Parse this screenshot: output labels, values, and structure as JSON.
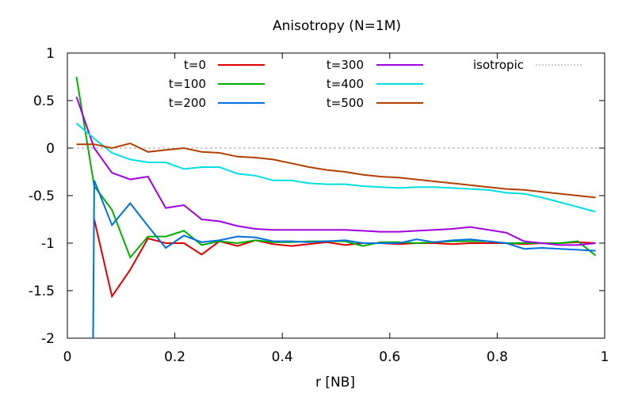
{
  "chart_data": {
    "type": "line",
    "title": "Anisotropy (N=1M)",
    "xlabel": "r [NB]",
    "ylabel": "",
    "xlim": [
      0,
      1
    ],
    "ylim": [
      -2,
      1
    ],
    "x_ticks": [
      "0",
      "0.2",
      "0.4",
      "0.6",
      "0.8",
      "1"
    ],
    "y_ticks": [
      "1",
      "0.5",
      "0",
      "-0.5",
      "-1",
      "-1.5",
      "-2"
    ],
    "reference_line": {
      "name": "isotropic",
      "y": 0,
      "color": "#a0a0a0",
      "dashed": true
    },
    "legend_placement": "top",
    "series": [
      {
        "name": "t=0",
        "color": "#e00000",
        "x": [
          0.05,
          0.083,
          0.117,
          0.15,
          0.183,
          0.217,
          0.25,
          0.283,
          0.317,
          0.35,
          0.383,
          0.417,
          0.45,
          0.483,
          0.517,
          0.55,
          0.583,
          0.617,
          0.65,
          0.683,
          0.717,
          0.75,
          0.783,
          0.817,
          0.85,
          0.883,
          0.917,
          0.95,
          0.983
        ],
        "y": [
          -0.75,
          -1.56,
          -1.28,
          -0.95,
          -1.0,
          -1.0,
          -1.12,
          -0.98,
          -1.03,
          -0.97,
          -1.01,
          -1.03,
          -1.01,
          -0.99,
          -1.02,
          -1.0,
          -1.0,
          -1.01,
          -1.0,
          -1.0,
          -1.01,
          -1.0,
          -1.0,
          -1.0,
          -1.01,
          -1.0,
          -1.0,
          -0.99,
          -1.0
        ]
      },
      {
        "name": "t=100",
        "color": "#00b000",
        "x": [
          0.017,
          0.05,
          0.083,
          0.117,
          0.15,
          0.183,
          0.217,
          0.25,
          0.283,
          0.317,
          0.35,
          0.383,
          0.417,
          0.45,
          0.483,
          0.517,
          0.55,
          0.583,
          0.617,
          0.65,
          0.683,
          0.717,
          0.75,
          0.783,
          0.817,
          0.85,
          0.883,
          0.917,
          0.95,
          0.983
        ],
        "y": [
          0.75,
          -0.4,
          -0.65,
          -1.15,
          -0.93,
          -0.93,
          -0.87,
          -1.02,
          -0.98,
          -1.0,
          -0.97,
          -0.99,
          -0.99,
          -0.98,
          -0.98,
          -0.98,
          -1.03,
          -0.99,
          -0.99,
          -1.0,
          -0.99,
          -0.98,
          -0.98,
          -0.98,
          -1.0,
          -1.0,
          -1.0,
          -1.0,
          -0.98,
          -1.13
        ]
      },
      {
        "name": "t=200",
        "color": "#0070e0",
        "x": [
          0.048,
          0.05,
          0.083,
          0.117,
          0.15,
          0.183,
          0.217,
          0.25,
          0.283,
          0.317,
          0.35,
          0.383,
          0.417,
          0.45,
          0.483,
          0.517,
          0.55,
          0.583,
          0.617,
          0.65,
          0.683,
          0.717,
          0.75,
          0.783,
          0.817,
          0.85,
          0.883,
          0.917,
          0.95,
          0.983
        ],
        "y": [
          -2.0,
          -0.34,
          -0.81,
          -0.58,
          -0.82,
          -1.05,
          -0.92,
          -0.99,
          -0.97,
          -0.93,
          -0.94,
          -0.98,
          -0.98,
          -0.99,
          -0.98,
          -0.97,
          -1.0,
          -1.0,
          -1.0,
          -0.96,
          -0.99,
          -0.97,
          -0.96,
          -0.98,
          -1.0,
          -1.06,
          -1.05,
          -1.06,
          -1.07,
          -1.08
        ]
      },
      {
        "name": "t=300",
        "color": "#a000e0",
        "x": [
          0.017,
          0.05,
          0.083,
          0.117,
          0.15,
          0.183,
          0.217,
          0.25,
          0.283,
          0.317,
          0.35,
          0.383,
          0.417,
          0.45,
          0.483,
          0.517,
          0.55,
          0.583,
          0.617,
          0.65,
          0.683,
          0.717,
          0.75,
          0.783,
          0.817,
          0.85,
          0.883,
          0.917,
          0.95,
          0.983
        ],
        "y": [
          0.54,
          0.0,
          -0.26,
          -0.33,
          -0.3,
          -0.63,
          -0.6,
          -0.75,
          -0.77,
          -0.82,
          -0.85,
          -0.86,
          -0.86,
          -0.86,
          -0.86,
          -0.86,
          -0.87,
          -0.88,
          -0.88,
          -0.87,
          -0.86,
          -0.85,
          -0.83,
          -0.86,
          -0.89,
          -0.98,
          -1.0,
          -1.02,
          -1.02,
          -1.0
        ]
      },
      {
        "name": "t=400",
        "color": "#00e0e0",
        "x": [
          0.017,
          0.05,
          0.083,
          0.117,
          0.15,
          0.183,
          0.217,
          0.25,
          0.283,
          0.317,
          0.35,
          0.383,
          0.417,
          0.45,
          0.483,
          0.517,
          0.55,
          0.583,
          0.617,
          0.65,
          0.683,
          0.717,
          0.75,
          0.783,
          0.817,
          0.85,
          0.883,
          0.917,
          0.95,
          0.983
        ],
        "y": [
          0.26,
          0.1,
          -0.05,
          -0.12,
          -0.15,
          -0.15,
          -0.22,
          -0.2,
          -0.2,
          -0.27,
          -0.29,
          -0.34,
          -0.34,
          -0.37,
          -0.38,
          -0.38,
          -0.4,
          -0.41,
          -0.42,
          -0.41,
          -0.41,
          -0.42,
          -0.43,
          -0.44,
          -0.47,
          -0.48,
          -0.52,
          -0.57,
          -0.62,
          -0.67
        ]
      },
      {
        "name": "t=500",
        "color": "#b04000",
        "x": [
          0.017,
          0.05,
          0.083,
          0.117,
          0.15,
          0.183,
          0.217,
          0.25,
          0.283,
          0.317,
          0.35,
          0.383,
          0.417,
          0.45,
          0.483,
          0.517,
          0.55,
          0.583,
          0.617,
          0.65,
          0.683,
          0.717,
          0.75,
          0.783,
          0.817,
          0.85,
          0.883,
          0.917,
          0.95,
          0.983
        ],
        "y": [
          0.04,
          0.04,
          0.0,
          0.05,
          -0.04,
          -0.02,
          0.0,
          -0.04,
          -0.05,
          -0.09,
          -0.1,
          -0.12,
          -0.16,
          -0.2,
          -0.23,
          -0.25,
          -0.28,
          -0.3,
          -0.31,
          -0.33,
          -0.35,
          -0.37,
          -0.39,
          -0.41,
          -0.43,
          -0.44,
          -0.46,
          -0.48,
          -0.5,
          -0.52
        ]
      }
    ]
  }
}
